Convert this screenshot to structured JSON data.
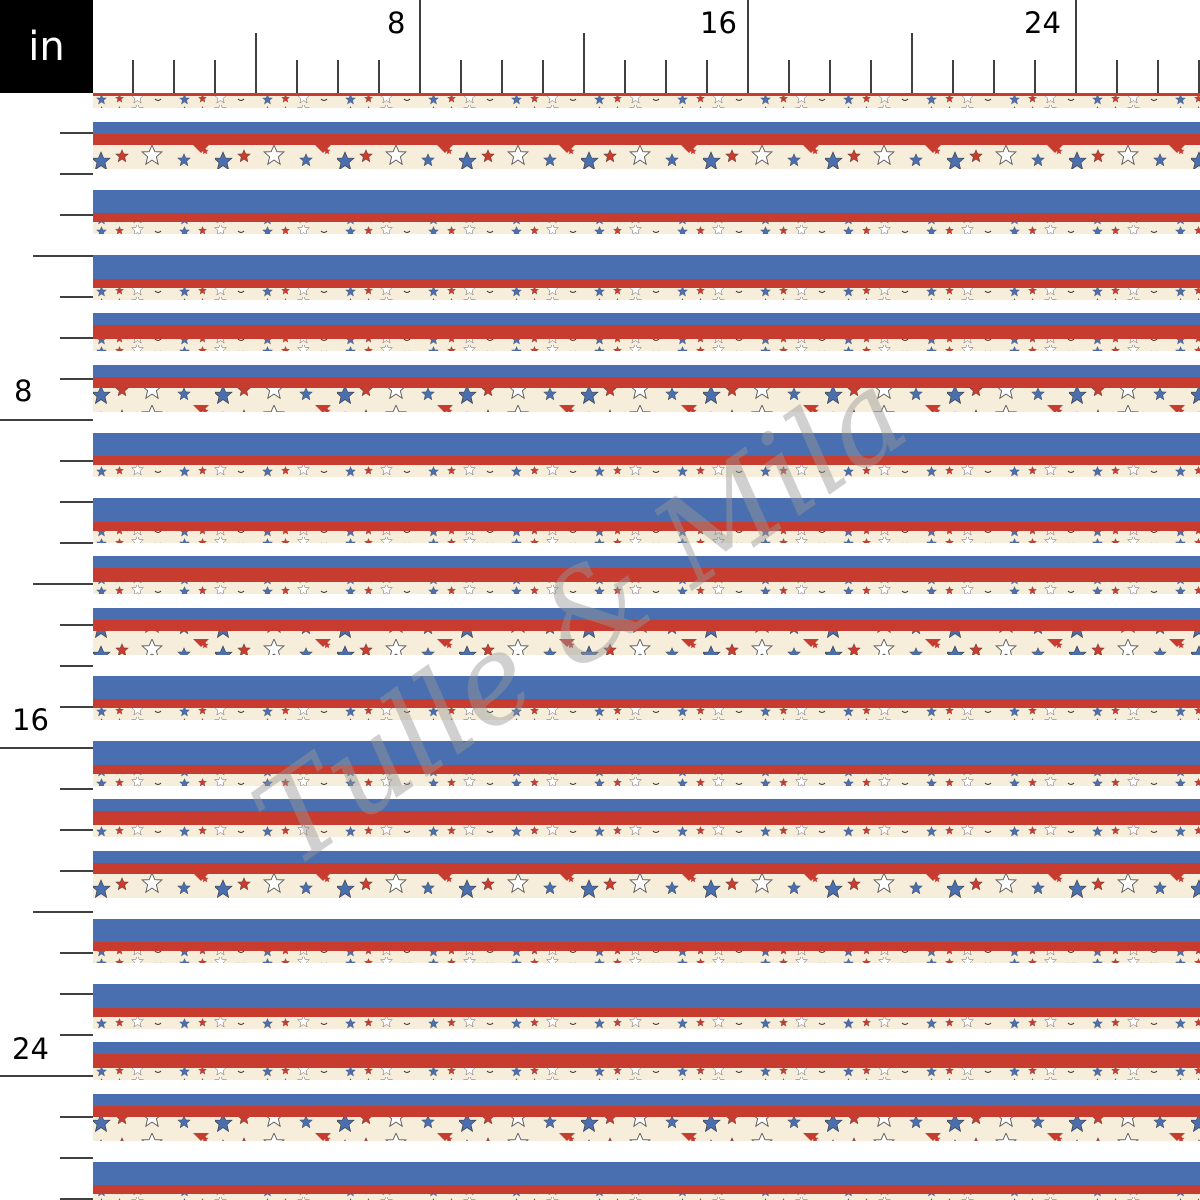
{
  "ruler": {
    "unit": "in",
    "pixels_per_unit_note": "",
    "top_labels": [
      "8",
      "16",
      "24"
    ],
    "left_labels": [
      "8",
      "16",
      "24"
    ]
  },
  "fabric": {
    "pattern": "patriotic stripes with stars",
    "colors": {
      "blue": "#4a6fb0",
      "red": "#c83c30",
      "cream": "#f6eedb",
      "white": "#ffffff",
      "outline": "#555555"
    }
  },
  "watermark": "Tulle & Mila"
}
